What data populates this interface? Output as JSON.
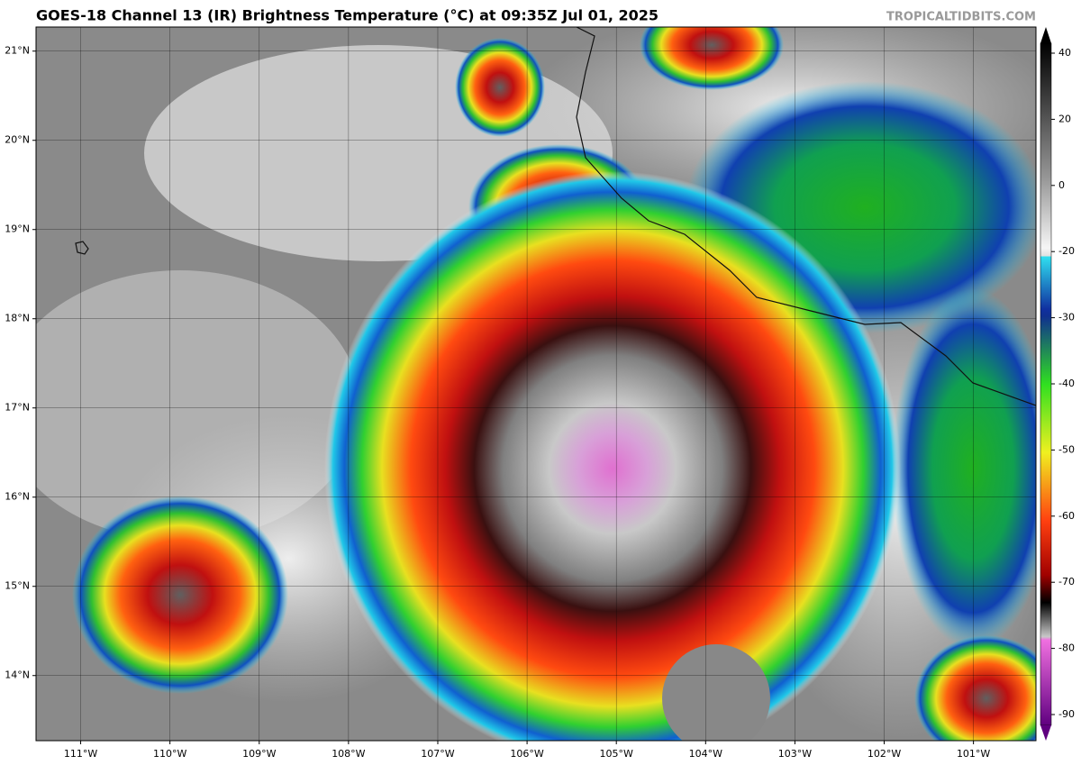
{
  "header": {
    "title": "GOES-18 Channel 13 (IR) Brightness Temperature (°C) at 09:35Z Jul 01, 2025",
    "credit": "TROPICALTIDBITS.COM"
  },
  "map": {
    "lat_range": [
      13.27,
      21.27
    ],
    "lon_range": [
      -111.5,
      -100.3
    ],
    "lat_ticks": [
      {
        "value": 21,
        "label": "21°N"
      },
      {
        "value": 20,
        "label": "20°N"
      },
      {
        "value": 19,
        "label": "19°N"
      },
      {
        "value": 18,
        "label": "18°N"
      },
      {
        "value": 17,
        "label": "17°N"
      },
      {
        "value": 16,
        "label": "16°N"
      },
      {
        "value": 15,
        "label": "15°N"
      },
      {
        "value": 14,
        "label": "14°N"
      }
    ],
    "lon_ticks": [
      {
        "value": -111,
        "label": "111°W"
      },
      {
        "value": -110,
        "label": "110°W"
      },
      {
        "value": -109,
        "label": "109°W"
      },
      {
        "value": -108,
        "label": "108°W"
      },
      {
        "value": -107,
        "label": "107°W"
      },
      {
        "value": -106,
        "label": "106°W"
      },
      {
        "value": -105,
        "label": "105°W"
      },
      {
        "value": -104,
        "label": "104°W"
      },
      {
        "value": -103,
        "label": "103°W"
      },
      {
        "value": -102,
        "label": "102°W"
      },
      {
        "value": -101,
        "label": "101°W"
      }
    ]
  },
  "colorbar": {
    "ticks": [
      40,
      20,
      0,
      -20,
      -30,
      -40,
      -50,
      -60,
      -70,
      -80,
      -90
    ]
  }
}
